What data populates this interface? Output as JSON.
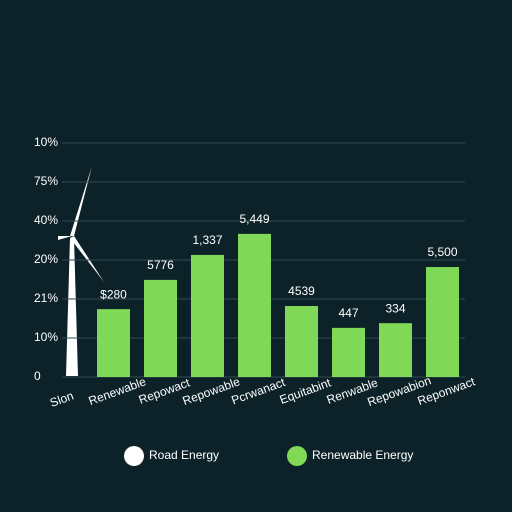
{
  "chart_data": {
    "type": "bar",
    "x_label": "Slon",
    "categories": [
      "Renewable",
      "Repowact",
      "Repowable",
      "Pcrwanact",
      "Equitabint",
      "Renwable",
      "Repowabion",
      "Reponwact"
    ],
    "series": [
      {
        "name": "Renewable Energy",
        "color": "#7fd957",
        "values": [
          1.74,
          2.49,
          3.13,
          3.67,
          1.82,
          1.26,
          1.38,
          2.82
        ]
      }
    ],
    "legend": [
      {
        "name": "Road Energy",
        "color": "#ffffff"
      },
      {
        "name": "Renewable Energy",
        "color": "#7fd957"
      }
    ],
    "annotations": [
      "$280",
      "5776",
      "1,337",
      "5,449",
      "4539",
      "447",
      "334",
      "5,500"
    ],
    "ylim": [
      0,
      6
    ],
    "yticks": [
      {
        "value": 0,
        "label": "0"
      },
      {
        "value": 1,
        "label": "10%"
      },
      {
        "value": 2,
        "label": "21%"
      },
      {
        "value": 3,
        "label": "20%"
      },
      {
        "value": 4,
        "label": "40%"
      },
      {
        "value": 5,
        "label": "75%"
      },
      {
        "value": 6,
        "label": "10%"
      }
    ],
    "grid": true
  }
}
